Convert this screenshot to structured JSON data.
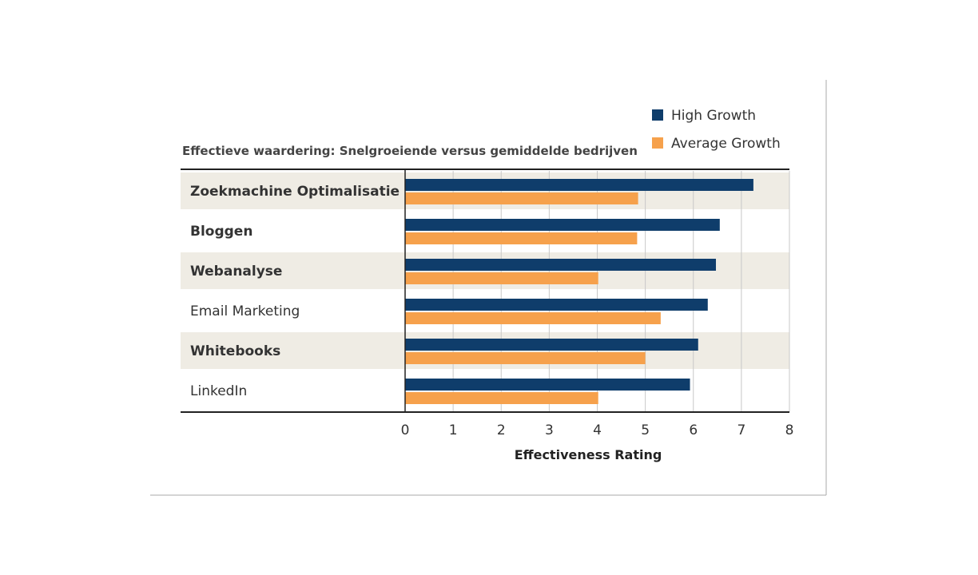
{
  "chart_data": {
    "type": "bar",
    "orientation": "horizontal",
    "title": "Effectieve waardering: Snelgroeiende versus gemiddelde bedrijven",
    "xlabel": "Effectiveness Rating",
    "ylabel": "",
    "xlim": [
      0,
      8
    ],
    "xticks": [
      0,
      1,
      2,
      3,
      4,
      5,
      6,
      7,
      8
    ],
    "grid": true,
    "legend_position": "top-right",
    "categories": [
      "Zoekmachine Optimalisatie",
      "Bloggen",
      "Webanalyse",
      "Email Marketing",
      "Whitebooks",
      "LinkedIn"
    ],
    "category_bold": [
      true,
      true,
      true,
      false,
      true,
      false
    ],
    "series": [
      {
        "name": "High Growth",
        "color": "#0f3d6b",
        "values": [
          7.25,
          6.55,
          6.47,
          6.3,
          6.1,
          5.93
        ]
      },
      {
        "name": "Average Growth",
        "color": "#f6a14c",
        "values": [
          4.85,
          4.83,
          4.02,
          5.32,
          5.0,
          4.02
        ]
      }
    ],
    "row_band_color": "#efece4"
  }
}
